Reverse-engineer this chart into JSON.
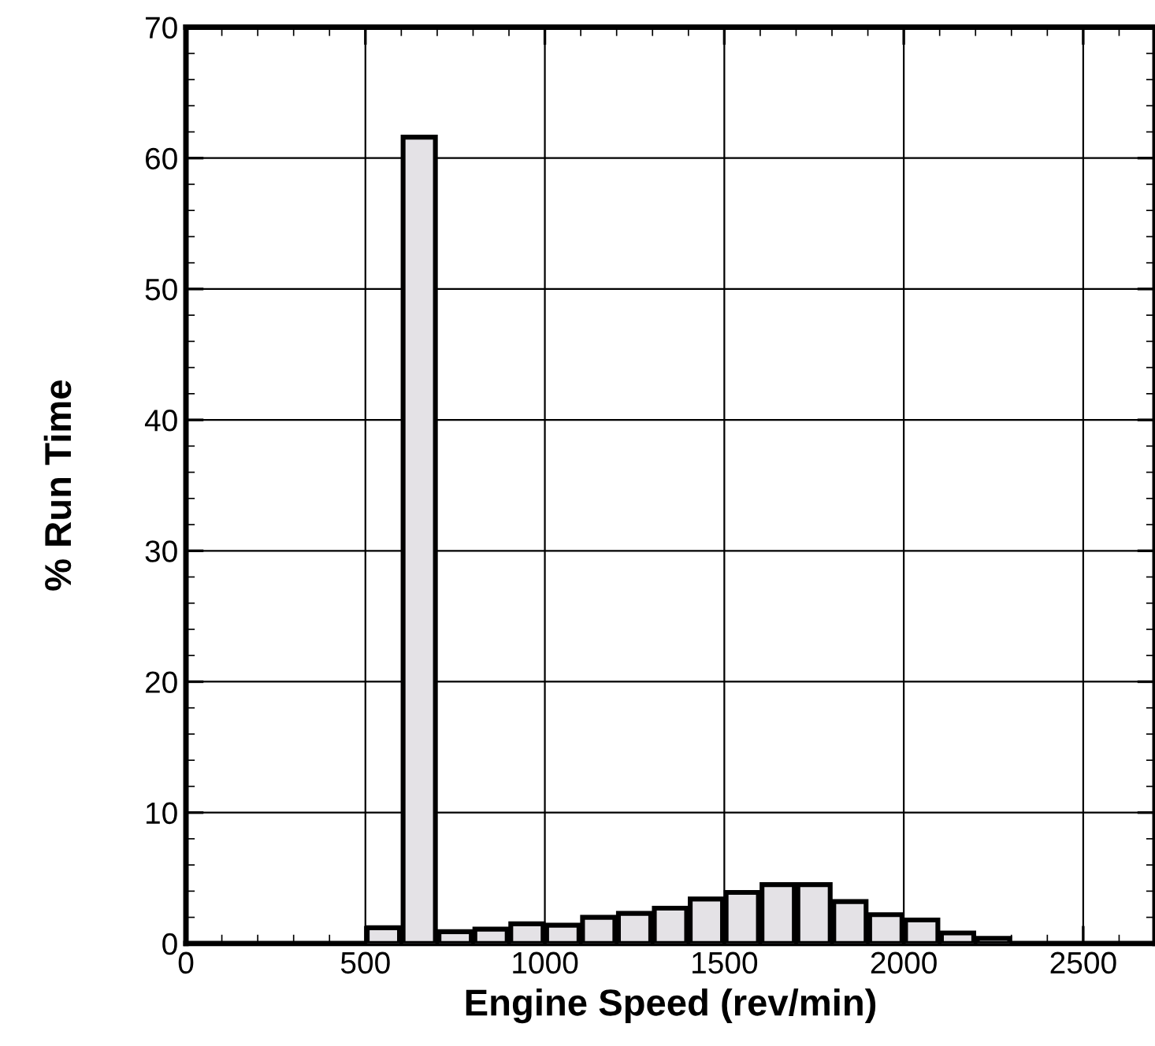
{
  "chart_data": {
    "type": "histogram",
    "xlabel": "Engine Speed (rev/min)",
    "ylabel": "% Run Time",
    "bins": [
      500,
      600,
      700,
      800,
      900,
      1000,
      1100,
      1200,
      1300,
      1400,
      1500,
      1600,
      1700,
      1800,
      1900,
      2000,
      2100,
      2200,
      2300
    ],
    "values": [
      1.2,
      61.6,
      0.9,
      1.1,
      1.5,
      1.4,
      2.0,
      2.3,
      2.7,
      3.4,
      3.9,
      4.5,
      4.5,
      3.2,
      2.2,
      1.8,
      0.8,
      0.4
    ],
    "color": "#e4e2e6",
    "xlim": [
      0,
      2700
    ],
    "xticks": [
      0,
      500,
      1000,
      1500,
      2000,
      2500
    ],
    "ylim": [
      0,
      70
    ],
    "yticks": [
      0,
      10,
      20,
      30,
      40,
      50,
      60,
      70
    ],
    "grid": true
  }
}
